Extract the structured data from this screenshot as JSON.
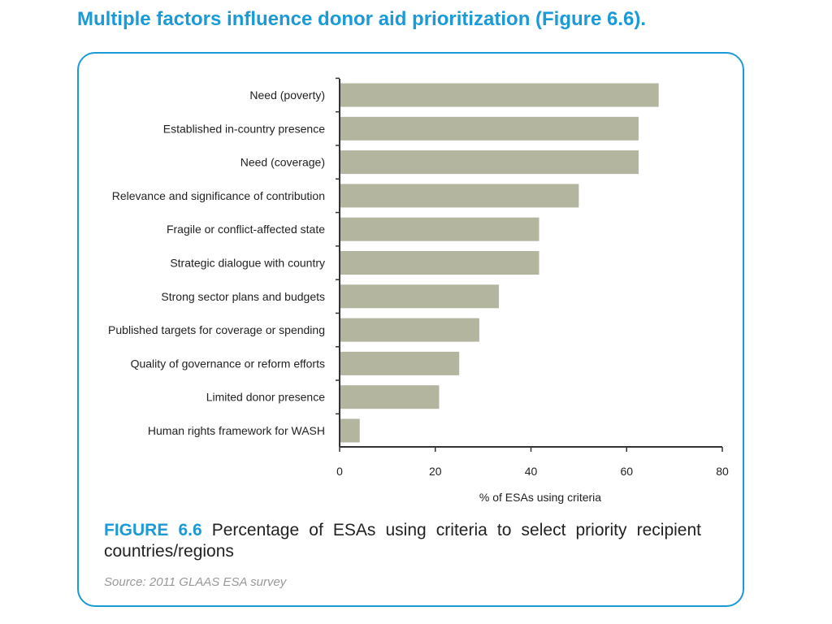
{
  "slide": {
    "title": "Multiple factors influence donor aid prioritization (Figure 6.6)."
  },
  "caption": {
    "figure_label": "FIGURE 6.6",
    "text": "Percentage of ESAs using criteria to select priority recipient countries/regions",
    "source": "Source: 2011 GLAAS ESA survey"
  },
  "colors": {
    "accent": "#1a9ad6",
    "bar": "#b3b59f",
    "axis": "#333333"
  },
  "chart_data": {
    "type": "bar",
    "orientation": "horizontal",
    "categories": [
      "Need (poverty)",
      "Established in-country presence",
      "Need (coverage)",
      "Relevance and significance of contribution",
      "Fragile or conflict-affected state",
      "Strategic dialogue with country",
      "Strong sector plans and budgets",
      "Published targets for coverage or spending",
      "Quality of governance or reform efforts",
      "Limited donor presence",
      "Human rights framework for WASH"
    ],
    "values": [
      66.7,
      62.5,
      62.5,
      50,
      41.7,
      41.7,
      33.3,
      29.2,
      25,
      20.8,
      4.2
    ],
    "xlabel": "% of ESAs using criteria",
    "ylabel": "",
    "xlim": [
      0,
      80
    ],
    "xticks": [
      0,
      20,
      40,
      60,
      80
    ],
    "grid": false,
    "legend": "none"
  }
}
